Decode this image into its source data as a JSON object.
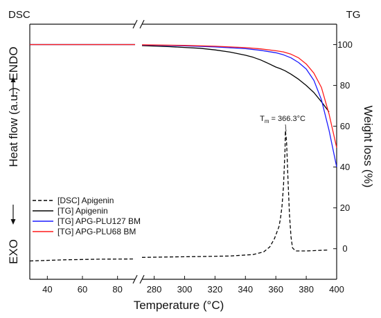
{
  "chart_data": {
    "type": "line",
    "corner_labels": {
      "left": "DSC",
      "right": "TG"
    },
    "xlabel": "Temperature (°C)",
    "ylabel_left": "Heat flow (a.u.)",
    "ylabel_right": "Weight loss (%)",
    "left_axis_markers": {
      "endo": "ENDO",
      "exo": "EXO"
    },
    "annotation": {
      "prefix": "T",
      "subscript": "m",
      "text": " = 366.3°C",
      "x": 366.3
    },
    "axis_break": true,
    "x_segments": [
      {
        "range": [
          30,
          90
        ],
        "ticks": [
          40,
          60,
          80
        ]
      },
      {
        "range": [
          272,
          400
        ],
        "ticks": [
          280,
          300,
          320,
          340,
          360,
          380,
          400
        ]
      }
    ],
    "y_right": {
      "range": [
        -15,
        110
      ],
      "ticks": [
        0,
        20,
        40,
        60,
        80,
        100
      ]
    },
    "legend_position": "lower-left",
    "series": [
      {
        "name": "[DSC] Apigenin",
        "axis": "left-dsc",
        "color": "#000000",
        "dash": true,
        "x": [
          30,
          50,
          70,
          90,
          272,
          290,
          310,
          330,
          345,
          352,
          356,
          359,
          361,
          362,
          363,
          364,
          365,
          366,
          366.3,
          367,
          368,
          369,
          370,
          371,
          373,
          380,
          395
        ],
        "y": [
          -5,
          -4.4,
          -4.1,
          -4.0,
          -3.2,
          -3.0,
          -2.8,
          -2.5,
          -1.8,
          -0.5,
          2.0,
          6.0,
          10.0,
          12.0,
          16.0,
          22.0,
          32.0,
          50.0,
          60.0,
          55.0,
          35.0,
          18.0,
          7.0,
          1.5,
          0.0,
          0.0,
          0.5
        ]
      },
      {
        "name": "[TG] Apigenin",
        "axis": "right",
        "color": "#000000",
        "dash": false,
        "x": [
          30,
          90,
          272,
          290,
          310,
          320,
          330,
          340,
          345,
          350,
          355,
          360,
          363,
          366,
          370,
          375,
          380,
          385,
          390,
          395
        ],
        "y": [
          100,
          100,
          99.5,
          99.0,
          98.2,
          97.4,
          96.3,
          94.8,
          93.8,
          92.5,
          90.8,
          89.0,
          88.2,
          87.2,
          85.5,
          83.0,
          80.0,
          76.5,
          72.0,
          67.0
        ]
      },
      {
        "name": "[TG] APG-PLU127 BM",
        "axis": "right",
        "color": "#1a1aff",
        "dash": false,
        "x": [
          30,
          90,
          272,
          300,
          320,
          340,
          350,
          360,
          365,
          370,
          375,
          380,
          385,
          390,
          395,
          400
        ],
        "y": [
          100,
          100,
          99.8,
          99.4,
          98.9,
          98.0,
          97.2,
          96.0,
          95.0,
          93.5,
          91.2,
          88.0,
          82.5,
          73.0,
          58.0,
          40.0
        ]
      },
      {
        "name": "[TG] APG-PLU68 BM",
        "axis": "right",
        "color": "#ff1a1a",
        "dash": false,
        "x": [
          30,
          90,
          272,
          300,
          320,
          340,
          350,
          360,
          365,
          370,
          375,
          380,
          385,
          390,
          395,
          400
        ],
        "y": [
          100,
          100,
          99.9,
          99.6,
          99.2,
          98.5,
          97.9,
          97.0,
          96.4,
          95.3,
          93.5,
          90.5,
          86.0,
          79.0,
          66.0,
          49.5
        ]
      }
    ]
  }
}
